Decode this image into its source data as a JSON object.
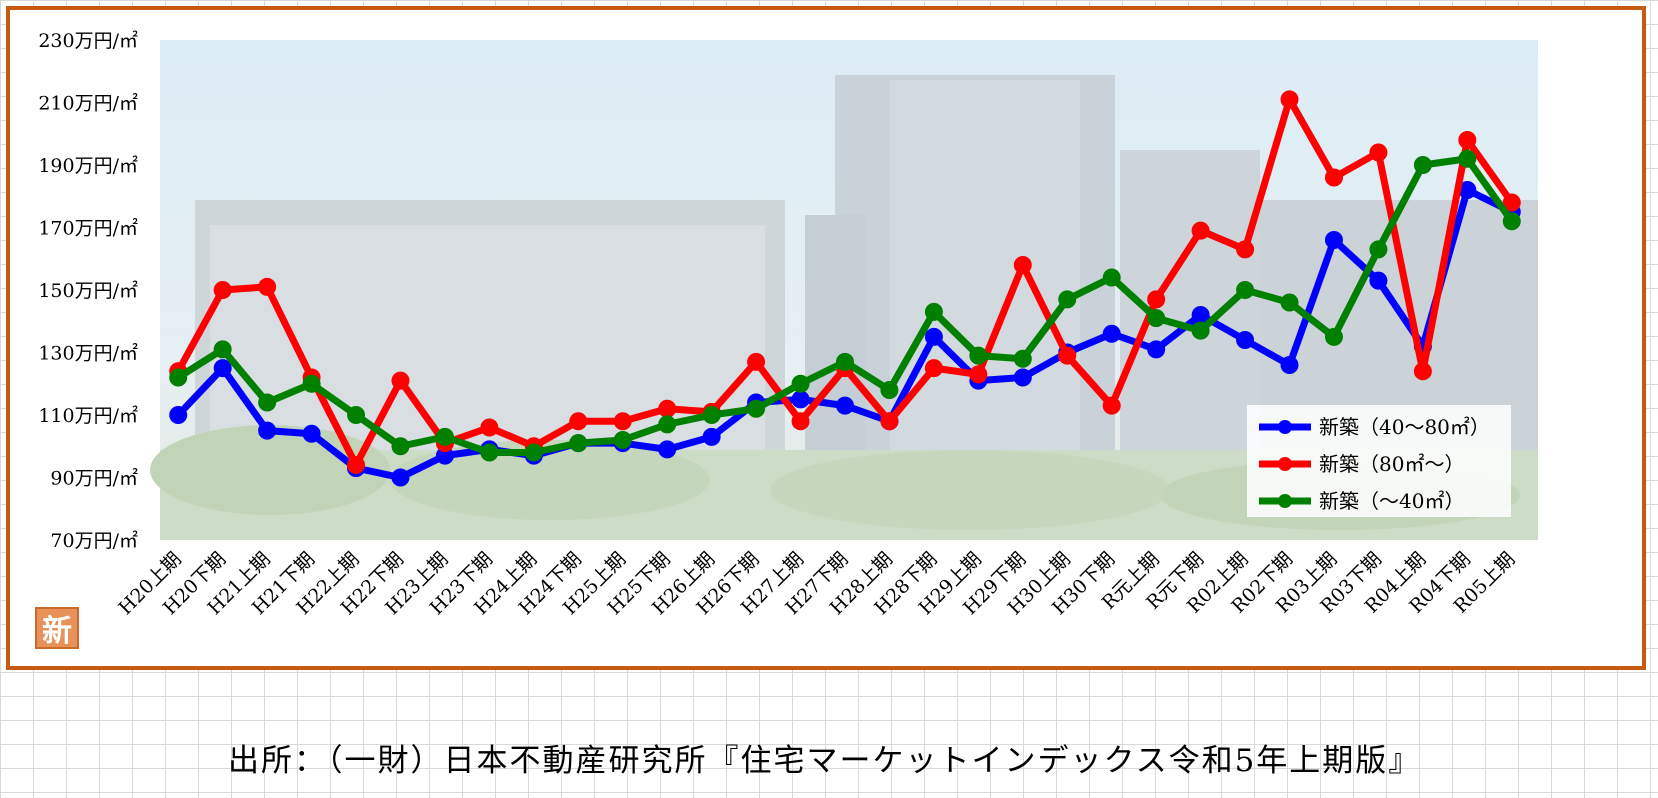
{
  "source_note": "出所：（一財）日本不動産研究所『住宅マーケットインデックス令和5年上期版』",
  "badge_text": "新",
  "chart_data": {
    "type": "line",
    "categories": [
      "H20上期",
      "H20下期",
      "H21上期",
      "H21下期",
      "H22上期",
      "H22下期",
      "H23上期",
      "H23下期",
      "H24上期",
      "H24下期",
      "H25上期",
      "H25下期",
      "H26上期",
      "H26下期",
      "H27上期",
      "H27下期",
      "H28上期",
      "H28下期",
      "H29上期",
      "H29下期",
      "H30上期",
      "H30下期",
      "R元上期",
      "R元下期",
      "R02上期",
      "R02下期",
      "R03上期",
      "R03下期",
      "R04上期",
      "R04下期",
      "R05上期"
    ],
    "ylim": [
      70,
      230
    ],
    "yticks": [
      70,
      90,
      110,
      130,
      150,
      170,
      190,
      210,
      230
    ],
    "ytick_labels": [
      "70万円/㎡",
      "90万円/㎡",
      "110万円/㎡",
      "130万円/㎡",
      "150万円/㎡",
      "170万円/㎡",
      "190万円/㎡",
      "210万円/㎡",
      "230万円/㎡"
    ],
    "legend_position": "bottom-right",
    "series": [
      {
        "name": "新築（40～80㎡）",
        "color": "#0000ff",
        "values": [
          110,
          125,
          105,
          104,
          93,
          90,
          97,
          99,
          97,
          101,
          101,
          99,
          103,
          114,
          115,
          113,
          108,
          135,
          121,
          122,
          130,
          136,
          131,
          142,
          134,
          126,
          166,
          153,
          132,
          182,
          175
        ]
      },
      {
        "name": "新築（80㎡～）",
        "color": "#ff0000",
        "values": [
          124,
          150,
          151,
          122,
          94,
          121,
          101,
          106,
          100,
          108,
          108,
          112,
          111,
          127,
          108,
          125,
          108,
          125,
          123,
          158,
          129,
          113,
          147,
          169,
          163,
          211,
          186,
          194,
          124,
          198,
          178
        ]
      },
      {
        "name": "新築（～40㎡）",
        "color": "#008000",
        "values": [
          122,
          131,
          114,
          120,
          110,
          100,
          103,
          98,
          98,
          101,
          102,
          107,
          110,
          112,
          120,
          127,
          118,
          143,
          129,
          128,
          147,
          154,
          141,
          137,
          150,
          146,
          135,
          163,
          190,
          192,
          172
        ]
      }
    ]
  }
}
